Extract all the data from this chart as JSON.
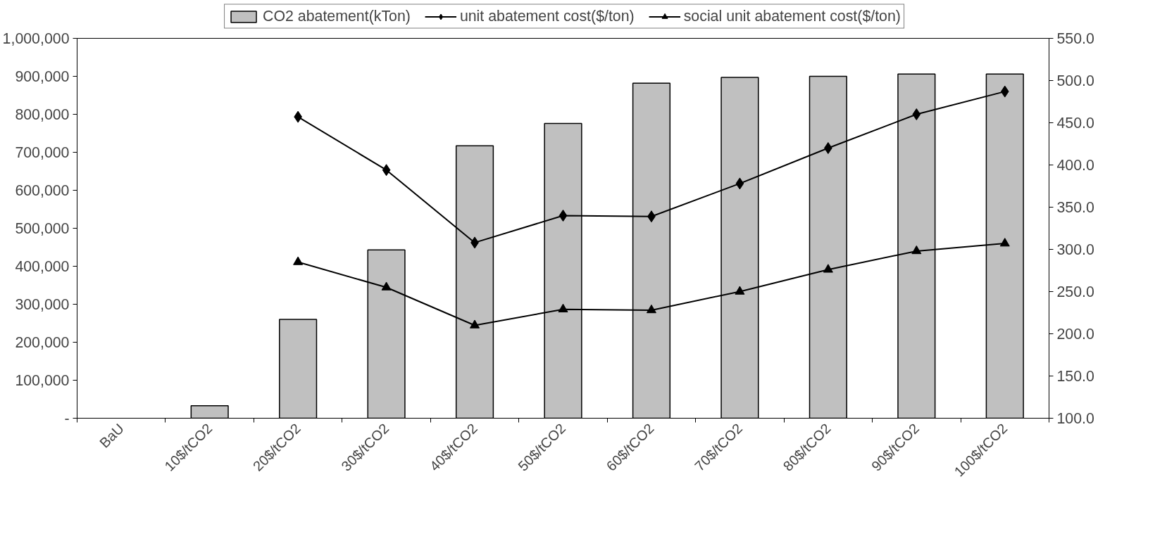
{
  "chart_data": {
    "type": "bar",
    "categories": [
      "BaU",
      "10$/tCO2",
      "20$/tCO2",
      "30$/tCO2",
      "40$/tCO2",
      "50$/tCO2",
      "60$/tCO2",
      "70$/tCO2",
      "80$/tCO2",
      "90$/tCO2",
      "100$/tCO2"
    ],
    "series": [
      {
        "name": "CO2 abatement(kTon)",
        "color": "#c0c0c0",
        "values": [
          null,
          33000,
          260000,
          443000,
          717000,
          776000,
          882000,
          897000,
          900000,
          906000,
          906000
        ]
      },
      {
        "name": "unit abatement cost($/ton)",
        "type": "line",
        "axis": "y2",
        "marker": "diamond",
        "color": "#000000",
        "values": [
          null,
          null,
          457,
          394,
          308,
          340,
          339,
          378,
          420,
          460,
          487
        ]
      },
      {
        "name": "social unit abatement cost($/ton)",
        "type": "line",
        "axis": "y2",
        "marker": "triangle",
        "color": "#000000",
        "values": [
          null,
          null,
          285,
          255,
          210,
          229,
          228,
          250,
          276,
          298,
          307
        ]
      }
    ],
    "ylim": [
      0,
      1000000
    ],
    "yticks": [
      {
        "value": 0,
        "label": "-"
      },
      {
        "value": 100000,
        "label": "100,000"
      },
      {
        "value": 200000,
        "label": "200,000"
      },
      {
        "value": 300000,
        "label": "300,000"
      },
      {
        "value": 400000,
        "label": "400,000"
      },
      {
        "value": 500000,
        "label": "500,000"
      },
      {
        "value": 600000,
        "label": "600,000"
      },
      {
        "value": 700000,
        "label": "700,000"
      },
      {
        "value": 800000,
        "label": "800,000"
      },
      {
        "value": 900000,
        "label": "900,000"
      },
      {
        "value": 1000000,
        "label": "1,000,000"
      }
    ],
    "y2lim": [
      100,
      550
    ],
    "y2ticks": [
      {
        "value": 100,
        "label": "100.0"
      },
      {
        "value": 150,
        "label": "150.0"
      },
      {
        "value": 200,
        "label": "200.0"
      },
      {
        "value": 250,
        "label": "250.0"
      },
      {
        "value": 300,
        "label": "300.0"
      },
      {
        "value": 350,
        "label": "350.0"
      },
      {
        "value": 400,
        "label": "400.0"
      },
      {
        "value": 450,
        "label": "450.0"
      },
      {
        "value": 500,
        "label": "500.0"
      },
      {
        "value": 550,
        "label": "550.0"
      }
    ],
    "legend": "top",
    "grid": false
  }
}
